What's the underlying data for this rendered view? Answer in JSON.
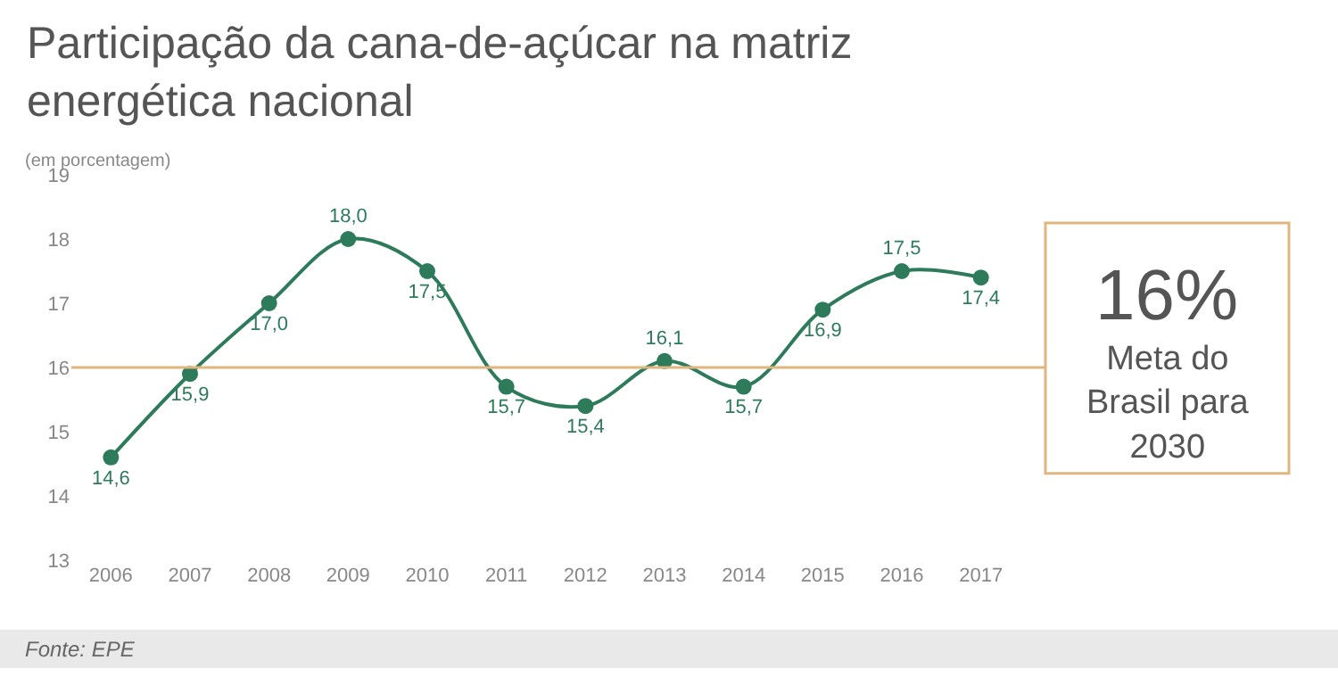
{
  "chart_data": {
    "type": "line",
    "title": "Participação da cana-de-açúcar na matriz energética nacional",
    "subtitle": "(em porcentagem)",
    "categories": [
      "2006",
      "2007",
      "2008",
      "2009",
      "2010",
      "2011",
      "2012",
      "2013",
      "2014",
      "2015",
      "2016",
      "2017"
    ],
    "series": [
      {
        "color": "#2e7b5c",
        "values": [
          14.6,
          15.9,
          17.0,
          18.0,
          17.5,
          15.7,
          15.4,
          16.1,
          15.7,
          16.9,
          17.5,
          17.4
        ],
        "value_labels": [
          "14,6",
          "15,9",
          "17,0",
          "18,0",
          "17,5",
          "15,7",
          "15,4",
          "16,1",
          "15,7",
          "16,9",
          "17,5",
          "17,4"
        ]
      }
    ],
    "ylim": [
      13,
      19
    ],
    "yticks": [
      13,
      14,
      15,
      16,
      17,
      18,
      19
    ],
    "grid": false,
    "legend": false,
    "marker": "circle",
    "line_style": "solid",
    "ref_lines": [
      {
        "axis": "y",
        "value": 16,
        "label": "16%",
        "color": "#e0b680"
      }
    ],
    "annotations": [
      "Meta do Brasil para 2030",
      "Fonte: EPE"
    ]
  }
}
